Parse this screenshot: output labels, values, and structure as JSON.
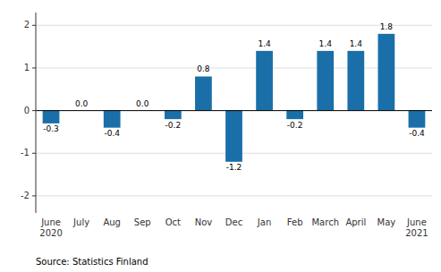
{
  "chart_data": {
    "type": "bar",
    "categories": [
      "June\n2020",
      "July",
      "Aug",
      "Sep",
      "Oct",
      "Nov",
      "Dec",
      "Jan",
      "Feb",
      "March",
      "April",
      "May",
      "June\n2021"
    ],
    "values": [
      -0.3,
      0.0,
      -0.4,
      0.0,
      -0.2,
      0.8,
      -1.2,
      1.4,
      -0.2,
      1.4,
      1.4,
      1.8,
      -0.4
    ],
    "value_labels": [
      "-0.3",
      "0.0",
      "-0.4",
      "0.0",
      "-0.2",
      "0.8",
      "-1.2",
      "1.4",
      "-0.2",
      "1.4",
      "1.4",
      "1.8",
      "-0.4"
    ],
    "data_labels": true,
    "color": "#1a6fa8",
    "ylim": [
      -2.4,
      2.3
    ],
    "yticks": [
      -2,
      -1,
      0,
      1,
      2
    ],
    "grid": true,
    "source": "Source: Statistics Finland"
  }
}
